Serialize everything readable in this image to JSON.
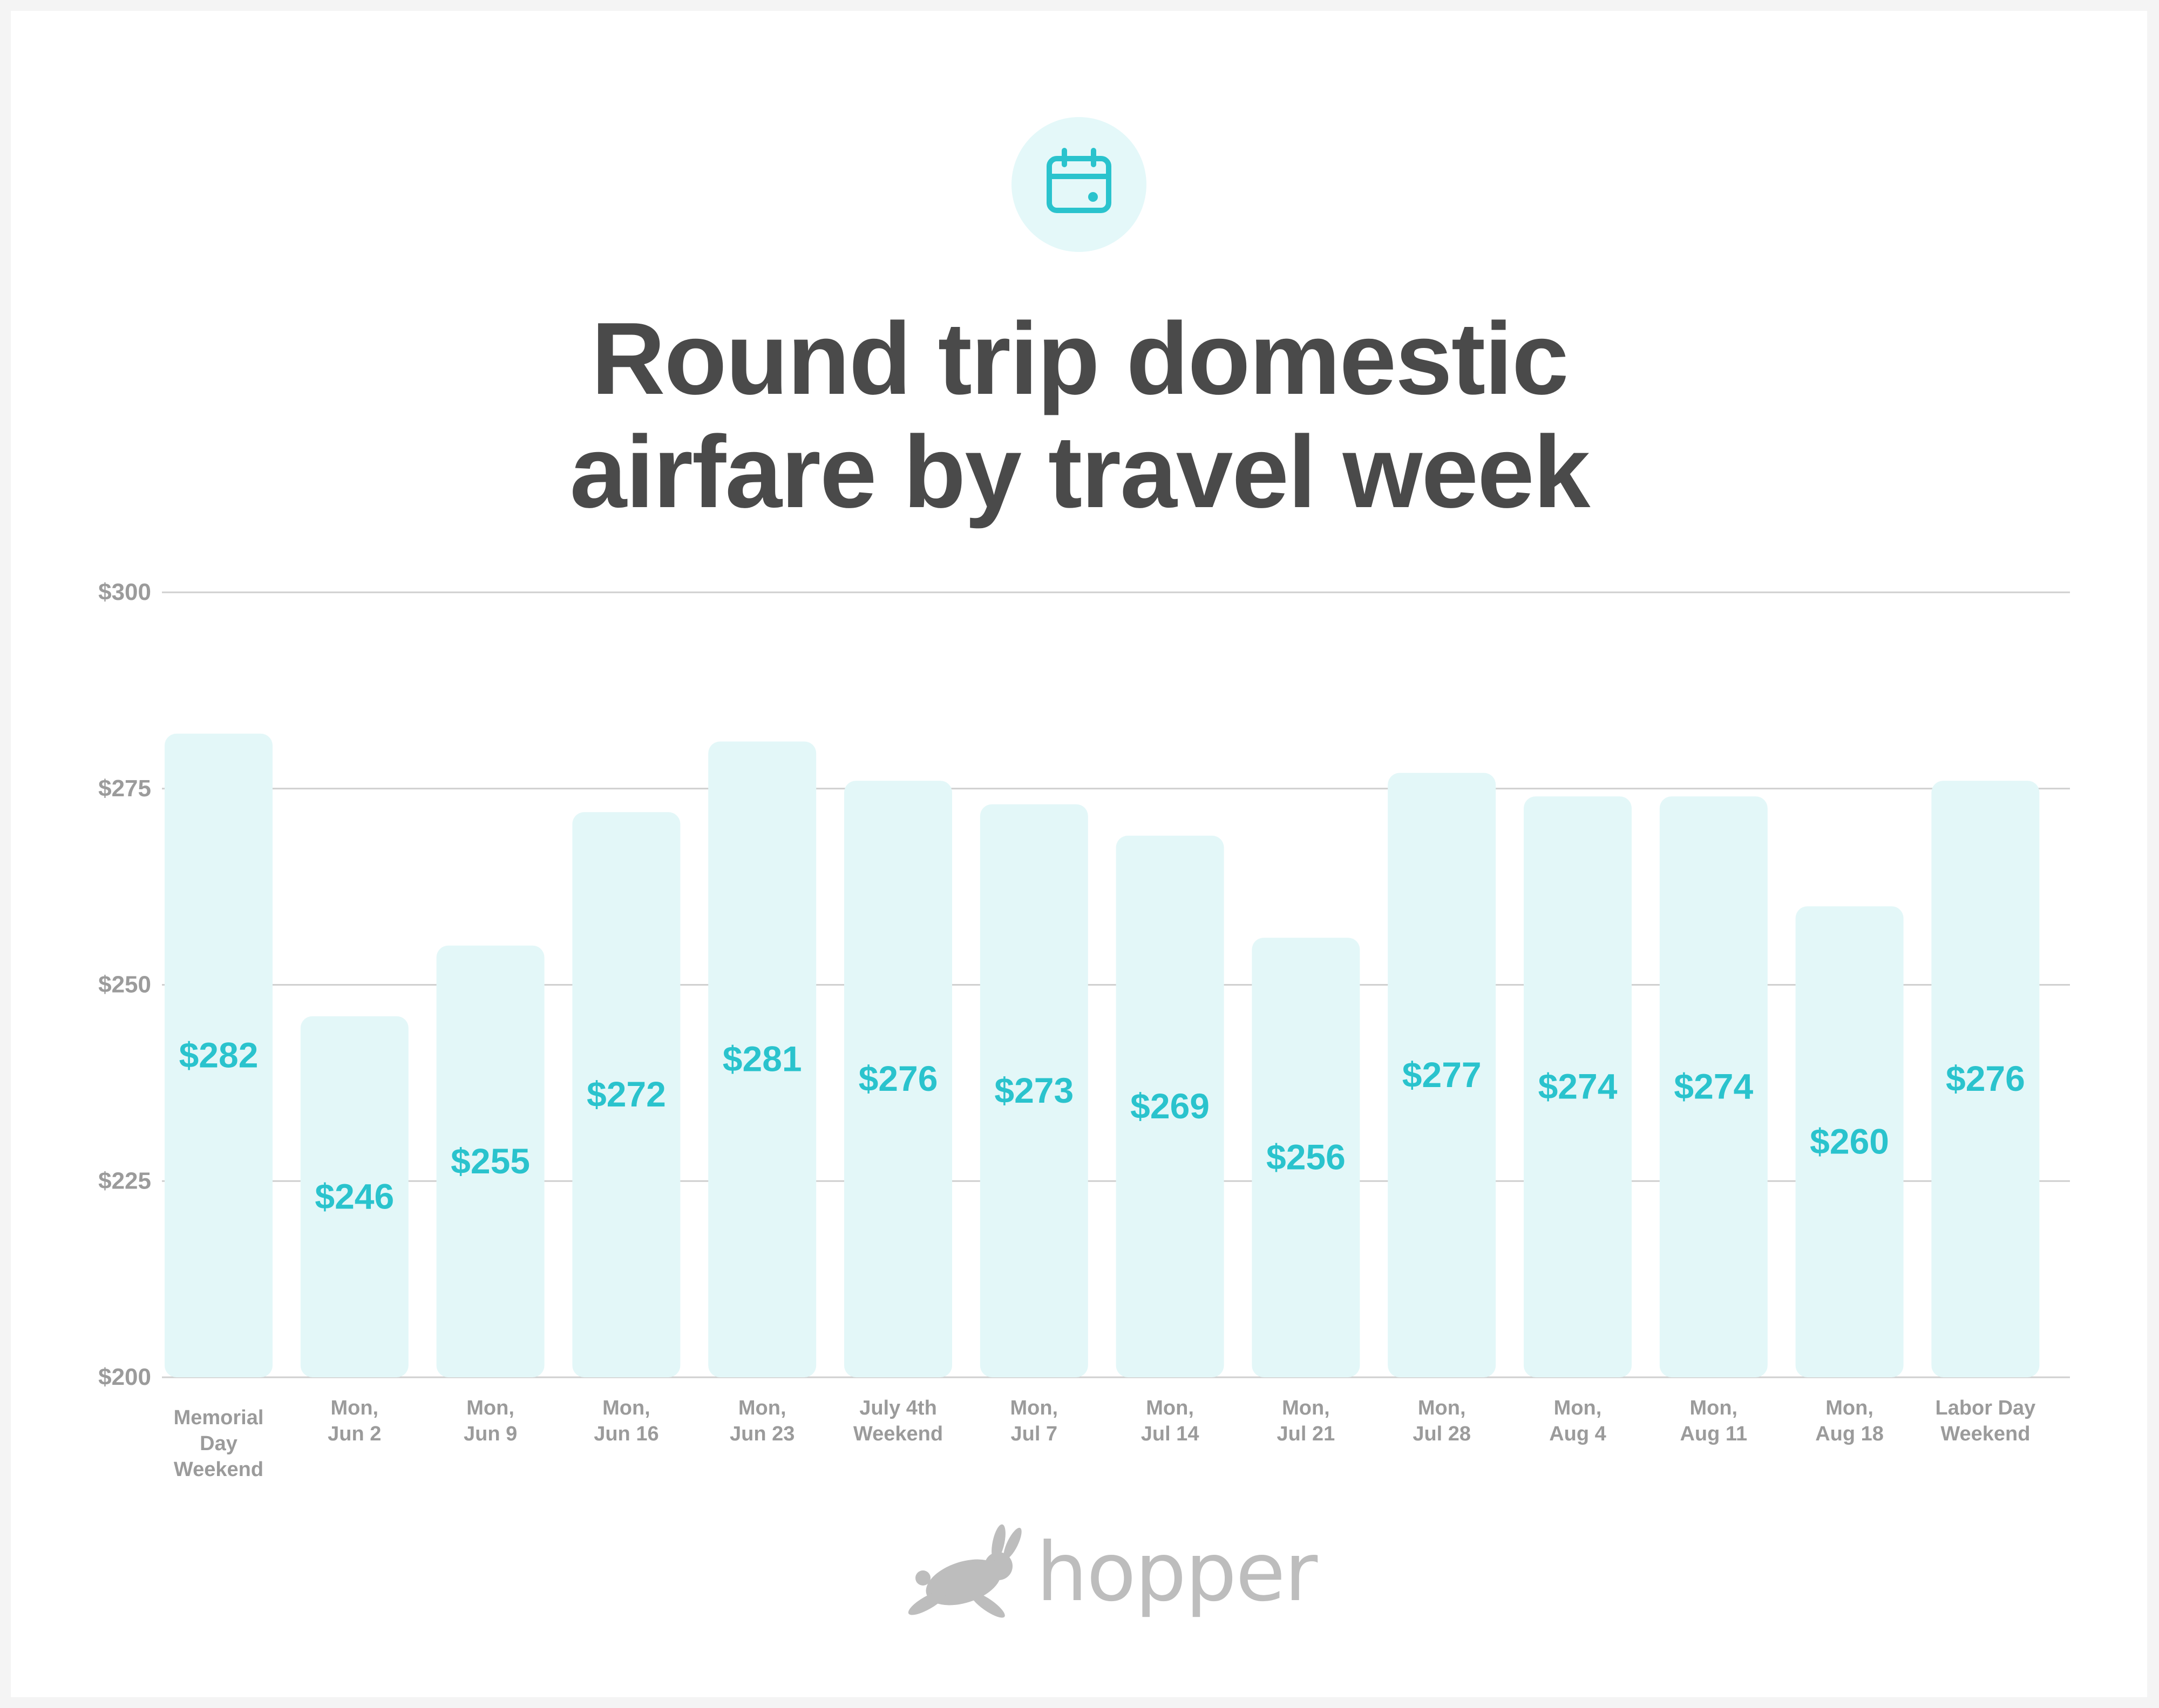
{
  "header": {
    "icon": "calendar-icon",
    "title_line1": "Round trip domestic",
    "title_line2": "airfare by travel week"
  },
  "colors": {
    "accent": "#2ac3cd",
    "bar_fill": "#e3f7f8",
    "icon_bg": "#e4f8f9",
    "title": "#4a4a4a",
    "axis_text": "#9b9b9b",
    "grid": "#cfcfcf",
    "logo": "#bdbdbd"
  },
  "chart_data": {
    "type": "bar",
    "title": "Round trip domestic airfare by travel week",
    "categories": [
      [
        "Memorial",
        "Day",
        "Weekend"
      ],
      [
        "Mon,",
        "Jun 2"
      ],
      [
        "Mon,",
        "Jun 9"
      ],
      [
        "Mon,",
        "Jun 16"
      ],
      [
        "Mon,",
        "Jun 23"
      ],
      [
        "July 4th",
        "Weekend"
      ],
      [
        "Mon,",
        "Jul 7"
      ],
      [
        "Mon,",
        "Jul 14"
      ],
      [
        "Mon,",
        "Jul 21"
      ],
      [
        "Mon,",
        "Jul 28"
      ],
      [
        "Mon,",
        "Aug 4"
      ],
      [
        "Mon,",
        "Aug 11"
      ],
      [
        "Mon,",
        "Aug 18"
      ],
      [
        "Labor Day",
        "Weekend"
      ]
    ],
    "values": [
      282,
      246,
      255,
      272,
      281,
      276,
      273,
      269,
      256,
      277,
      274,
      274,
      260,
      276
    ],
    "value_labels": [
      "$282",
      "$246",
      "$255",
      "$272",
      "$281",
      "$276",
      "$273",
      "$269",
      "$256",
      "$277",
      "$274",
      "$274",
      "$260",
      "$276"
    ],
    "y_ticks": [
      200,
      225,
      250,
      275,
      300
    ],
    "y_tick_labels": [
      "$200",
      "$225",
      "$250",
      "$275",
      "$300"
    ],
    "ylim": [
      200,
      300
    ],
    "xlabel": "",
    "ylabel": "",
    "grid": true
  },
  "footer": {
    "logo_icon": "rabbit-icon",
    "logo_text": "hopper"
  }
}
